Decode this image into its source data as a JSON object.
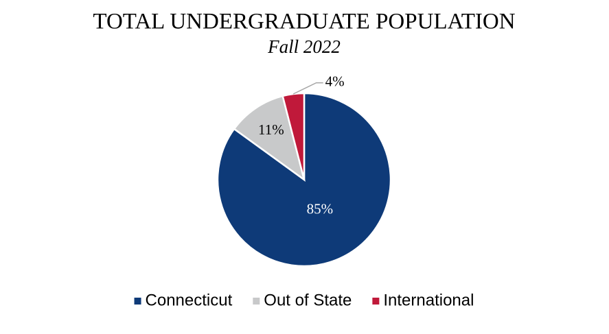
{
  "chart_data": {
    "type": "pie",
    "title": "TOTAL UNDERGRADUATE POPULATION",
    "subtitle": "Fall 2022",
    "categories": [
      "Connecticut",
      "Out of State",
      "International"
    ],
    "values": [
      85,
      11,
      4
    ],
    "value_labels": [
      "85%",
      "11%",
      "4%"
    ],
    "colors": [
      "#0e3a78",
      "#c8c9ca",
      "#c0193a"
    ],
    "legend": "bottom"
  }
}
